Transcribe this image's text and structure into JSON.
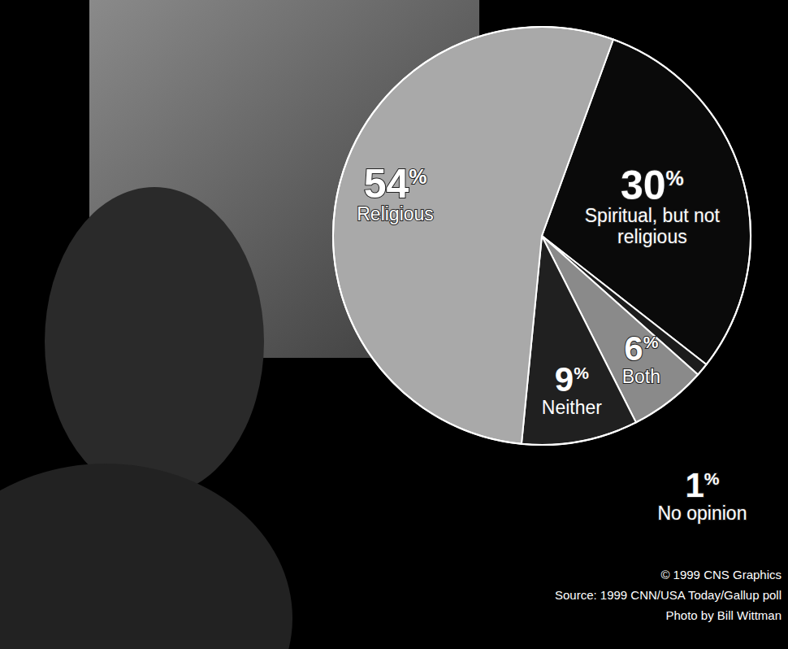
{
  "chart_data": {
    "type": "pie",
    "categories": [
      "Spiritual, but not religious",
      "No opinion",
      "Both",
      "Neither",
      "Religious"
    ],
    "values": [
      30,
      1,
      6,
      9,
      54
    ],
    "value_labels": [
      "30%",
      "1%",
      "6%",
      "9%",
      "54%"
    ],
    "colors": [
      "#0a0a0a",
      "#1c1c1c",
      "#8a8a8a",
      "#202020",
      "#a9a9a9"
    ],
    "data_labels": true,
    "annotations": [
      "© 1999 CNS Graphics",
      "Source: 1999 CNN/USA Today/Gallup poll",
      "Photo by Bill Wittman"
    ]
  }
}
